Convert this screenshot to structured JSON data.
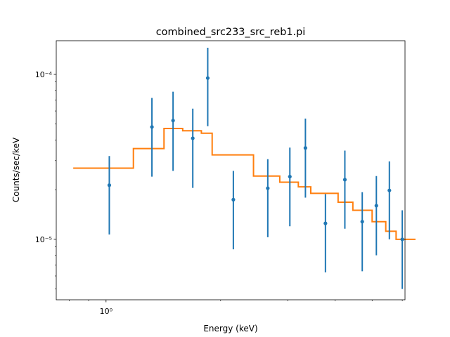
{
  "chart_data": {
    "type": "scatter",
    "title": "combined_src233_src_reb1.pi",
    "xlabel": "Energy (keV)",
    "ylabel": "Counts/sec/keV",
    "xscale": "log",
    "yscale": "log",
    "xlim": [
      0.74,
      6.1
    ],
    "ylim": [
      4.3e-06,
      0.00016
    ],
    "grid": false,
    "x_major_ticks": [
      {
        "value": 1,
        "label": "10⁰"
      }
    ],
    "x_minor_ticks": [
      0.8,
      0.9,
      2,
      3,
      4,
      5,
      6
    ],
    "y_major_ticks": [
      {
        "value": 1e-05,
        "label": "10⁻⁵"
      },
      {
        "value": 0.0001,
        "label": "10⁻⁴"
      }
    ],
    "y_minor_ticks": [
      5e-06,
      6e-06,
      7e-06,
      8e-06,
      9e-06,
      2e-05,
      3e-05,
      4e-05,
      5e-05,
      6e-05,
      7e-05,
      8e-05,
      9e-05
    ],
    "colors": {
      "data": "#1f77b4",
      "model": "#ff7f0e"
    },
    "series": [
      {
        "kind": "points_with_errorbars",
        "points": [
          {
            "x": 1.02,
            "y": 2.13e-05,
            "ylo": 1.07e-05,
            "yhi": 3.2e-05
          },
          {
            "x": 1.32,
            "y": 4.8e-05,
            "ylo": 2.4e-05,
            "yhi": 7.2e-05
          },
          {
            "x": 1.5,
            "y": 5.25e-05,
            "ylo": 2.6e-05,
            "yhi": 7.85e-05
          },
          {
            "x": 1.69,
            "y": 4.1e-05,
            "ylo": 2.05e-05,
            "yhi": 6.2e-05
          },
          {
            "x": 1.85,
            "y": 9.5e-05,
            "ylo": 4.85e-05,
            "yhi": 0.000145
          },
          {
            "x": 2.16,
            "y": 1.74e-05,
            "ylo": 8.7e-06,
            "yhi": 2.6e-05
          },
          {
            "x": 2.66,
            "y": 2.04e-05,
            "ylo": 1.03e-05,
            "yhi": 3.06e-05
          },
          {
            "x": 3.04,
            "y": 2.4e-05,
            "ylo": 1.2e-05,
            "yhi": 3.6e-05
          },
          {
            "x": 3.34,
            "y": 3.58e-05,
            "ylo": 1.79e-05,
            "yhi": 5.4e-05
          },
          {
            "x": 3.77,
            "y": 1.25e-05,
            "ylo": 6.3e-06,
            "yhi": 1.88e-05
          },
          {
            "x": 4.24,
            "y": 2.3e-05,
            "ylo": 1.16e-05,
            "yhi": 3.45e-05
          },
          {
            "x": 4.71,
            "y": 1.28e-05,
            "ylo": 6.4e-06,
            "yhi": 1.93e-05
          },
          {
            "x": 5.13,
            "y": 1.6e-05,
            "ylo": 8e-06,
            "yhi": 2.42e-05
          },
          {
            "x": 5.55,
            "y": 1.98e-05,
            "ylo": 1e-05,
            "yhi": 2.97e-05
          },
          {
            "x": 6.0,
            "y": 1e-05,
            "ylo": 5e-06,
            "yhi": 1.5e-05
          }
        ]
      },
      {
        "kind": "step_model",
        "steps": [
          {
            "x0": 0.82,
            "x1": 1.18,
            "y": 2.7e-05
          },
          {
            "x0": 1.18,
            "x1": 1.42,
            "y": 3.55e-05
          },
          {
            "x0": 1.42,
            "x1": 1.59,
            "y": 4.7e-05
          },
          {
            "x0": 1.59,
            "x1": 1.78,
            "y": 4.55e-05
          },
          {
            "x0": 1.78,
            "x1": 1.9,
            "y": 4.4e-05
          },
          {
            "x0": 1.9,
            "x1": 2.44,
            "y": 3.25e-05
          },
          {
            "x0": 2.44,
            "x1": 2.86,
            "y": 2.42e-05
          },
          {
            "x0": 2.86,
            "x1": 3.2,
            "y": 2.22e-05
          },
          {
            "x0": 3.2,
            "x1": 3.45,
            "y": 2.08e-05
          },
          {
            "x0": 3.45,
            "x1": 4.07,
            "y": 1.9e-05
          },
          {
            "x0": 4.07,
            "x1": 4.45,
            "y": 1.68e-05
          },
          {
            "x0": 4.45,
            "x1": 5.0,
            "y": 1.5e-05
          },
          {
            "x0": 5.0,
            "x1": 5.43,
            "y": 1.28e-05
          },
          {
            "x0": 5.43,
            "x1": 5.78,
            "y": 1.12e-05
          },
          {
            "x0": 5.78,
            "x1": 6.5,
            "y": 1e-05
          }
        ]
      }
    ]
  }
}
